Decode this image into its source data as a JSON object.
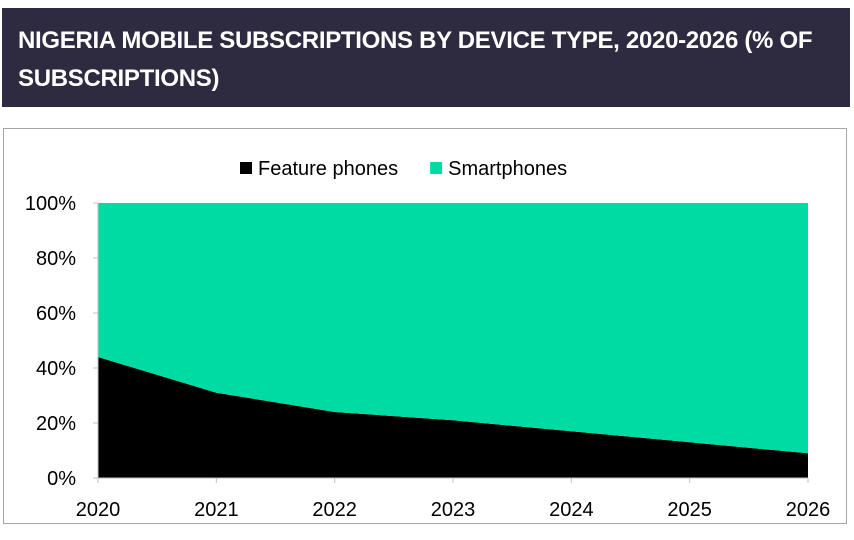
{
  "header": {
    "title": "NIGERIA MOBILE SUBSCRIPTIONS BY DEVICE TYPE, 2020-2026 (% OF SUBSCRIPTIONS)"
  },
  "chart_data": {
    "type": "area",
    "stacked": true,
    "x": [
      "2020",
      "2021",
      "2022",
      "2023",
      "2024",
      "2025",
      "2026"
    ],
    "series": [
      {
        "name": "Feature phones",
        "color": "#000000",
        "values": [
          44,
          31,
          24,
          21,
          17,
          13,
          9
        ]
      },
      {
        "name": "Smartphones",
        "color": "#00dba3",
        "values": [
          56,
          69,
          76,
          79,
          83,
          87,
          91
        ]
      }
    ],
    "y_ticks": [
      "0%",
      "20%",
      "40%",
      "60%",
      "80%",
      "100%"
    ],
    "ylim": [
      0,
      100
    ],
    "grid": false,
    "legend_position": "top-center"
  }
}
